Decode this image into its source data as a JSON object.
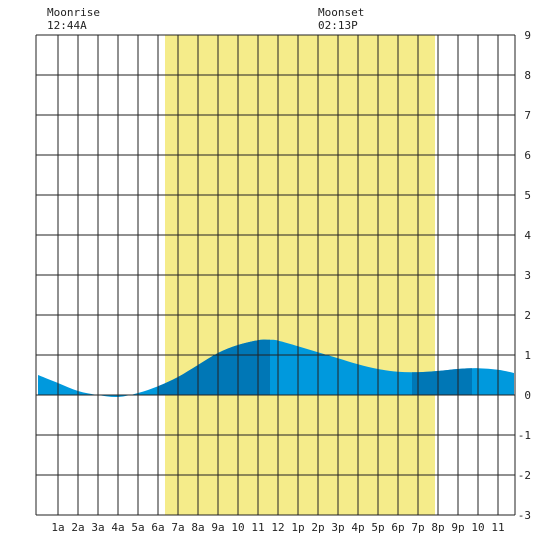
{
  "header": {
    "moonrise": {
      "label": "Moonrise",
      "time": "12:44A"
    },
    "moonset": {
      "label": "Moonset",
      "time": "02:13P"
    }
  },
  "colors": {
    "daylight": "#f5ec8a",
    "tide_light": "#0099dd",
    "tide_dark": "#0077b6",
    "grid": "#222222",
    "background": "#ffffff"
  },
  "chart_data": {
    "type": "area",
    "title": "",
    "xlabel": "",
    "ylabel": "",
    "x_unit": "hour of day",
    "xlim": [
      -0.1,
      23.8
    ],
    "ylim": [
      -3,
      9
    ],
    "y_ticks": [
      9,
      8,
      7,
      6,
      5,
      4,
      3,
      2,
      1,
      0,
      -1,
      -2,
      -3
    ],
    "y_axis_side": "right",
    "x_tick_hours": [
      1,
      2,
      3,
      4,
      5,
      6,
      7,
      8,
      9,
      10,
      11,
      12,
      13,
      14,
      15,
      16,
      17,
      18,
      19,
      20,
      21,
      22,
      23
    ],
    "x_tick_labels": [
      "1a",
      "2a",
      "3a",
      "4a",
      "5a",
      "6a",
      "7a",
      "8a",
      "9a",
      "10",
      "11",
      "12",
      "1p",
      "2p",
      "3p",
      "4p",
      "5p",
      "6p",
      "7p",
      "8p",
      "9p",
      "10",
      "11"
    ],
    "grid": true,
    "daylight": {
      "start_hour": 6.35,
      "end_hour": 19.85
    },
    "series": [
      {
        "x": [
          0,
          1,
          2,
          3,
          4,
          5,
          6,
          7,
          8,
          9,
          10,
          11,
          11.6,
          12,
          13,
          14,
          15,
          16,
          17,
          18,
          19,
          20,
          21,
          22,
          23,
          23.8
        ],
        "y": [
          0.5,
          0.3,
          0.1,
          0.0,
          -0.05,
          0.05,
          0.22,
          0.45,
          0.75,
          1.05,
          1.25,
          1.37,
          1.38,
          1.36,
          1.22,
          1.07,
          0.92,
          0.77,
          0.65,
          0.58,
          0.57,
          0.6,
          0.65,
          0.67,
          0.63,
          0.55
        ]
      }
    ],
    "shade_bands": [
      {
        "start_hour": 6.0,
        "end_hour": 11.6
      },
      {
        "start_hour": 18.7,
        "end_hour": 21.7
      }
    ]
  }
}
